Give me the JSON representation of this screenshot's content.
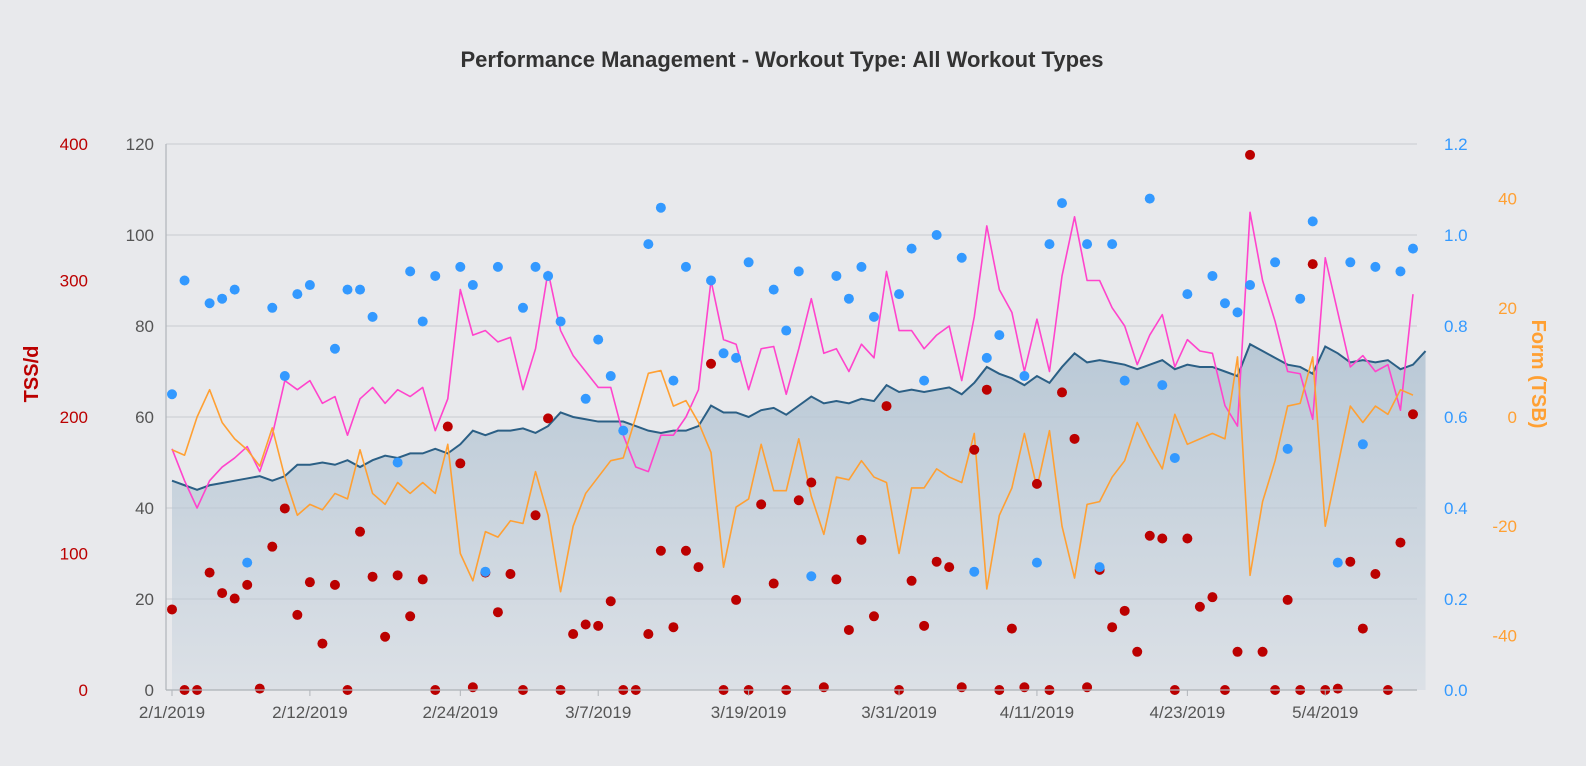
{
  "chart_data": {
    "type": "line",
    "title": "Performance Management - Workout Type: All Workout Types",
    "x_start": "2/1/2019",
    "x_tick_labels": [
      "2/1/2019",
      "2/12/2019",
      "2/24/2019",
      "3/7/2019",
      "3/19/2019",
      "3/31/2019",
      "4/11/2019",
      "4/23/2019",
      "5/4/2019"
    ],
    "axes": {
      "y_left_inner": {
        "ticks": [
          "0",
          "20",
          "40",
          "60",
          "80",
          "100",
          "120"
        ],
        "range": [
          0,
          120
        ],
        "color": "#555555"
      },
      "y_left_tss": {
        "label": "TSS/d",
        "ticks": [
          "0",
          "100",
          "200",
          "300",
          "400"
        ],
        "range": [
          0,
          400
        ],
        "color": "#bb0000"
      },
      "y_right_if": {
        "ticks": [
          "0.0",
          "0.2",
          "0.4",
          "0.6",
          "0.8",
          "1.0",
          "1.2"
        ],
        "range": [
          0,
          1.2
        ],
        "color": "#3399ff"
      },
      "y_right_tsb": {
        "label": "Form (TSB)",
        "ticks": [
          "-40",
          "-20",
          "0",
          "20",
          "40"
        ],
        "range": [
          -50,
          50
        ],
        "color": "#ffa033"
      }
    },
    "grid": true,
    "legend": "none",
    "series": [
      {
        "kind": "area",
        "axis": "y_left_inner",
        "color": "#2b5f85",
        "fill": "#b7c7d5",
        "values": [
          46,
          45,
          44,
          45,
          45.5,
          46,
          46.5,
          47,
          46,
          47,
          49.5,
          49.5,
          50,
          49.5,
          50.5,
          49,
          50.5,
          51.5,
          51,
          52,
          52,
          53,
          52,
          54,
          57,
          56,
          57,
          57,
          57.5,
          56.5,
          58,
          61,
          60,
          59.5,
          59,
          59,
          59,
          58,
          57,
          56.5,
          57,
          57,
          58,
          62.5,
          61,
          61,
          60,
          61.5,
          62,
          60.5,
          62.5,
          64.5,
          63,
          63.5,
          63,
          64,
          63.5,
          67,
          65.5,
          66,
          65.5,
          66,
          66.5,
          65,
          67.5,
          71,
          69.5,
          68.5,
          67,
          69,
          67.5,
          71,
          74,
          72,
          72.5,
          72,
          71.5,
          70.5,
          71.5,
          72.5,
          70.5,
          71.5,
          71,
          71,
          70,
          69,
          76,
          74.5,
          73,
          71.5,
          71,
          69.5,
          75.5,
          74,
          72,
          72.5,
          72,
          72.5,
          70.5,
          71.5,
          74.5
        ]
      },
      {
        "kind": "line",
        "axis": "y_left_inner",
        "color": "#ff44cc",
        "values": [
          53,
          46,
          40,
          46,
          49,
          51,
          53.5,
          48,
          56,
          68,
          66,
          68,
          63,
          64.5,
          56,
          64,
          66.5,
          63,
          66,
          64.5,
          66.5,
          57,
          64,
          88,
          78,
          79,
          76.5,
          77.5,
          66,
          75,
          92,
          79,
          73.5,
          70,
          66.5,
          66.5,
          56,
          49,
          48,
          56,
          56,
          60,
          66,
          90,
          77,
          76,
          66,
          75,
          75.5,
          65,
          75,
          86,
          74,
          75,
          70,
          76,
          73,
          92,
          79,
          79,
          75,
          78,
          80,
          68,
          82,
          102,
          88,
          83,
          70,
          81.5,
          70,
          91,
          104,
          90,
          90,
          84,
          80,
          71.5,
          78,
          82.5,
          71,
          77,
          74.5,
          74,
          62.5,
          58,
          105,
          90,
          81,
          70,
          69.5,
          59.5,
          95,
          83,
          71,
          73.5,
          70,
          71.5,
          61.5,
          87
        ]
      },
      {
        "kind": "line",
        "axis": "y_right_tsb",
        "color": "#ffa033",
        "values": [
          -6,
          -7,
          0,
          5,
          -1,
          -4,
          -6,
          -9,
          -2,
          -11,
          -18,
          -16,
          -17,
          -14,
          -15,
          -6,
          -14,
          -16,
          -12,
          -14,
          -12,
          -14,
          -5,
          -25,
          -30,
          -21,
          -22,
          -19,
          -19.5,
          -10,
          -18,
          -32,
          -20,
          -14,
          -11,
          -8,
          -7.5,
          0,
          8,
          8.5,
          2,
          3,
          -1,
          -6.5,
          -27.5,
          -16.5,
          -15,
          -5,
          -13.5,
          -13.5,
          -4,
          -14.5,
          -21.5,
          -11,
          -11.5,
          -8,
          -11,
          -12,
          -25,
          -13,
          -13,
          -9.5,
          -11,
          -12,
          -3,
          -31.5,
          -18,
          -13,
          -3,
          -13,
          -2.5,
          -20,
          -29.5,
          -16,
          -15.5,
          -11,
          -8,
          -1,
          -5.5,
          -9.5,
          0.5,
          -5,
          -4,
          -3,
          -4,
          11,
          -29,
          -15.5,
          -8,
          2,
          2.5,
          11,
          -20,
          -9,
          2,
          -1,
          2,
          0.5,
          5,
          4
        ]
      },
      {
        "kind": "scatter",
        "axis": "y_left_tss",
        "color": "#bb0000",
        "values": [
          59,
          0,
          0,
          86,
          71,
          67,
          77,
          1,
          105,
          133,
          55,
          79,
          34,
          77,
          0,
          116,
          83,
          39,
          84,
          54,
          81,
          0,
          193,
          166,
          2,
          86,
          57,
          85,
          0,
          128,
          199,
          0,
          41,
          48,
          47,
          65,
          0,
          0,
          41,
          102,
          46,
          102,
          90,
          239,
          0,
          66,
          0,
          136,
          78,
          0,
          139,
          152,
          2,
          81,
          44,
          110,
          54,
          208,
          0,
          80,
          47,
          94,
          90,
          2,
          176,
          220,
          0,
          45,
          2,
          151,
          0,
          218,
          184,
          2,
          88,
          46,
          58,
          28,
          113,
          111,
          0,
          111,
          61,
          68,
          0,
          28,
          392,
          28,
          0,
          66,
          0,
          312,
          0,
          1,
          94,
          45,
          85,
          0,
          108,
          202
        ]
      },
      {
        "kind": "scatter",
        "axis": "y_right_if",
        "color": "#3399ff",
        "values": [
          0.65,
          0.9,
          0.85,
          0.86,
          0.88,
          0.28,
          0.84,
          0.69,
          0.87,
          0.89,
          0.75,
          0.88,
          0.88,
          0.82,
          0.5,
          0.92,
          0.81,
          0.91,
          0.93,
          0.89,
          0.26,
          0.93,
          0.84,
          0.93,
          0.91,
          0.81,
          0.64,
          0.77,
          0.69,
          0.57,
          0.98,
          1.06,
          0.68,
          0.93,
          0.9,
          0.74,
          0.73,
          0.94,
          0.88,
          0.79,
          0.92,
          0.25,
          0.91,
          0.86,
          0.93,
          0.82,
          0.87,
          0.97,
          0.68,
          1.0,
          0.95,
          0.26,
          0.73,
          0.78,
          0.69,
          0.28,
          0.98,
          1.07,
          0.98,
          0.27,
          0.98,
          0.68,
          1.08,
          0.67,
          0.51,
          0.87,
          0.91,
          0.85,
          0.83,
          0.89,
          0.94,
          0.53,
          0.86,
          1.03,
          0.28,
          0.94,
          0.54,
          0.93,
          0.92,
          0.97
        ]
      }
    ]
  }
}
